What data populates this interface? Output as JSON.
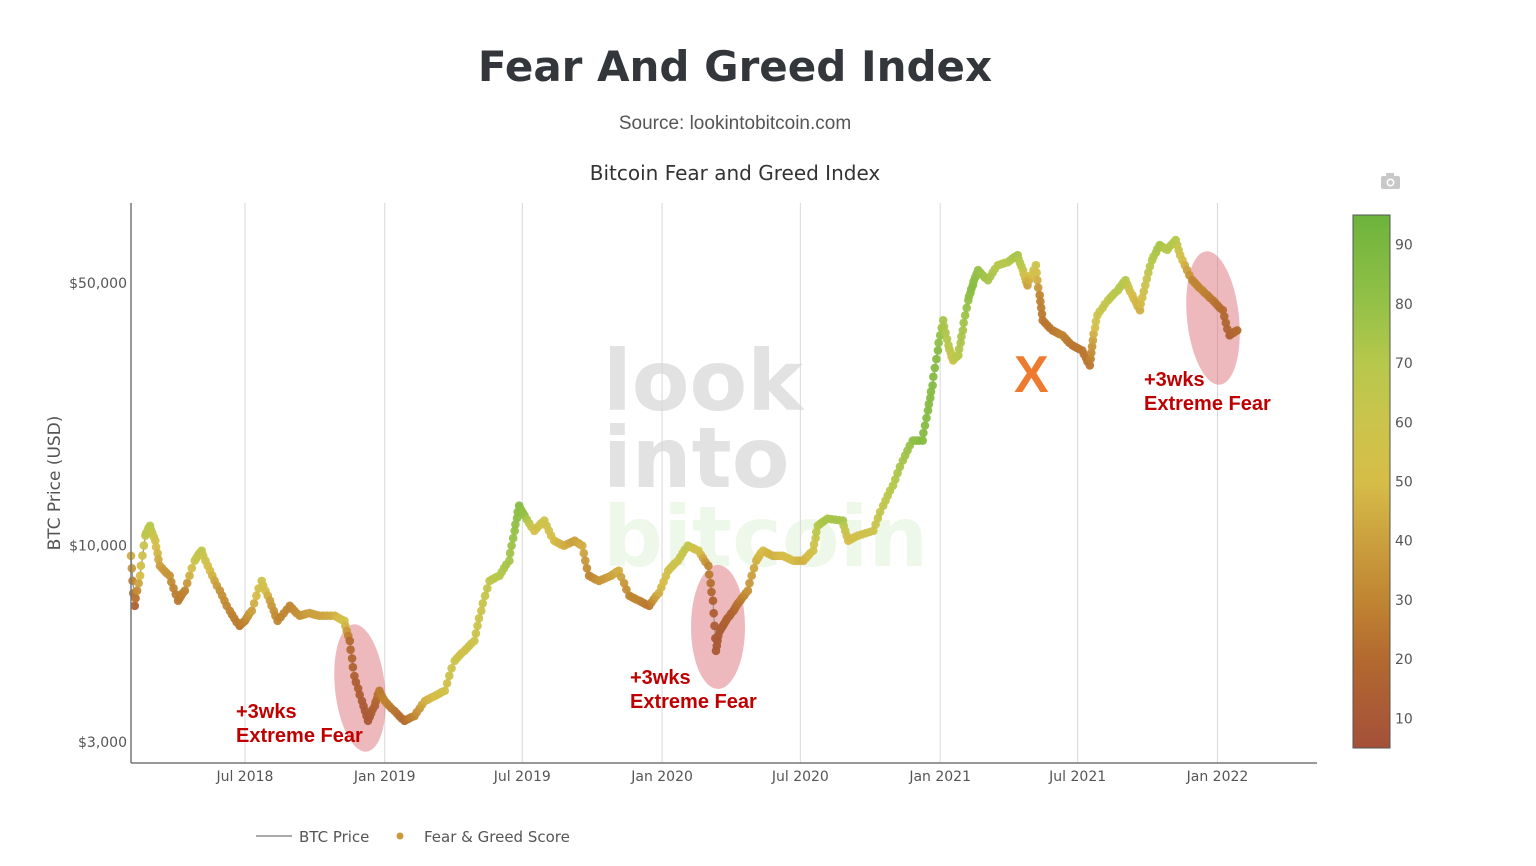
{
  "header": {
    "title": "Fear And Greed Index",
    "subtitle": "Source: lookintobitcoin.com"
  },
  "toolbar": {
    "camera_icon": "camera-icon"
  },
  "watermark": {
    "lines": [
      "look",
      "into",
      "bitcoin"
    ]
  },
  "chart_data": {
    "type": "scatter",
    "title": "Bitcoin Fear and Greed Index",
    "ylabel": "BTC Price (USD)",
    "xlabel": "",
    "yscale": "log",
    "ylim": [
      2640,
      81700
    ],
    "xlim": [
      "2018-02-01",
      "2022-05-12"
    ],
    "grid": "vertical",
    "x_ticks": [
      {
        "date": "2018-07-01",
        "label": "Jul 2018"
      },
      {
        "date": "2019-01-01",
        "label": "Jan 2019"
      },
      {
        "date": "2019-07-01",
        "label": "Jul 2019"
      },
      {
        "date": "2020-01-01",
        "label": "Jan 2020"
      },
      {
        "date": "2020-07-01",
        "label": "Jul 2020"
      },
      {
        "date": "2021-01-01",
        "label": "Jan 2021"
      },
      {
        "date": "2021-07-01",
        "label": "Jul 2021"
      },
      {
        "date": "2022-01-01",
        "label": "Jan 2022"
      }
    ],
    "y_ticks": [
      {
        "value": 50000,
        "label": "$50,000"
      },
      {
        "value": 10000,
        "label": "$10,000"
      },
      {
        "value": 3000,
        "label": "$3,000"
      }
    ],
    "colorbar": {
      "range": [
        5,
        95
      ],
      "ticks": [
        10,
        20,
        30,
        40,
        50,
        60,
        70,
        80,
        90
      ],
      "colorscale": [
        [
          5,
          "#a4503a"
        ],
        [
          20,
          "#b3692f"
        ],
        [
          30,
          "#c08532"
        ],
        [
          40,
          "#cba03e"
        ],
        [
          50,
          "#d6bd48"
        ],
        [
          60,
          "#cbc44c"
        ],
        [
          70,
          "#b6c84c"
        ],
        [
          80,
          "#94c147"
        ],
        [
          95,
          "#6db33c"
        ]
      ]
    },
    "legend": {
      "placement": "bottom-left",
      "items": [
        {
          "name": "BTC Price",
          "kind": "line",
          "color": "#aaaaaa"
        },
        {
          "name": "Fear & Greed Score",
          "kind": "marker",
          "color": "#c89a3a"
        }
      ]
    },
    "annotations": [
      {
        "text_lines": [
          "+3wks",
          "Extreme Fear"
        ],
        "period": "2018-11 to 2018-12"
      },
      {
        "text_lines": [
          "+3wks",
          "Extreme Fear"
        ],
        "period": "2020-03 to 2020-04"
      },
      {
        "text_lines": [
          "+3wks",
          "Extreme Fear"
        ],
        "period": "2021-11 to 2022-01"
      },
      {
        "text_lines": [
          "X"
        ],
        "color": "#ee7a30",
        "period": "2021-05"
      }
    ],
    "series": [
      {
        "name": "BTC Price / Fear & Greed Score",
        "points": [
          [
            "2018-02-01",
            9400,
            45
          ],
          [
            "2018-02-06",
            6920,
            15
          ],
          [
            "2018-02-13",
            8320,
            50
          ],
          [
            "2018-02-20",
            10640,
            65
          ],
          [
            "2018-02-26",
            11300,
            70
          ],
          [
            "2018-03-05",
            10310,
            55
          ],
          [
            "2018-03-11",
            8840,
            40
          ],
          [
            "2018-03-24",
            8320,
            35
          ],
          [
            "2018-04-04",
            7140,
            25
          ],
          [
            "2018-04-13",
            7590,
            30
          ],
          [
            "2018-04-26",
            9120,
            60
          ],
          [
            "2018-05-05",
            9700,
            65
          ],
          [
            "2018-05-16",
            8580,
            50
          ],
          [
            "2018-05-29",
            7590,
            35
          ],
          [
            "2018-06-11",
            6710,
            30
          ],
          [
            "2018-06-24",
            6120,
            25
          ],
          [
            "2018-07-01",
            6310,
            30
          ],
          [
            "2018-07-10",
            6710,
            40
          ],
          [
            "2018-07-23",
            8060,
            60
          ],
          [
            "2018-08-03",
            7140,
            40
          ],
          [
            "2018-08-13",
            6310,
            30
          ],
          [
            "2018-08-29",
            6920,
            30
          ],
          [
            "2018-09-11",
            6510,
            35
          ],
          [
            "2018-09-24",
            6620,
            40
          ],
          [
            "2018-10-07",
            6510,
            40
          ],
          [
            "2018-10-27",
            6510,
            45
          ],
          [
            "2018-11-09",
            6310,
            55
          ],
          [
            "2018-11-16",
            5580,
            20
          ],
          [
            "2018-11-22",
            4500,
            15
          ],
          [
            "2018-12-02",
            3860,
            12
          ],
          [
            "2018-12-10",
            3420,
            10
          ],
          [
            "2018-12-19",
            3750,
            15
          ],
          [
            "2018-12-25",
            4110,
            25
          ],
          [
            "2019-01-01",
            3860,
            30
          ],
          [
            "2019-01-14",
            3630,
            25
          ],
          [
            "2019-01-27",
            3420,
            20
          ],
          [
            "2019-02-09",
            3520,
            30
          ],
          [
            "2019-02-23",
            3860,
            45
          ],
          [
            "2019-03-08",
            3980,
            50
          ],
          [
            "2019-03-21",
            4110,
            55
          ],
          [
            "2019-04-03",
            4940,
            60
          ],
          [
            "2019-04-16",
            5250,
            55
          ],
          [
            "2019-04-29",
            5580,
            60
          ],
          [
            "2019-05-08",
            6710,
            60
          ],
          [
            "2019-05-19",
            8060,
            65
          ],
          [
            "2019-06-01",
            8320,
            70
          ],
          [
            "2019-06-14",
            9120,
            75
          ],
          [
            "2019-06-21",
            10960,
            80
          ],
          [
            "2019-06-27",
            12780,
            85
          ],
          [
            "2019-07-04",
            12020,
            80
          ],
          [
            "2019-07-17",
            10960,
            55
          ],
          [
            "2019-07-30",
            11660,
            60
          ],
          [
            "2019-08-12",
            10310,
            50
          ],
          [
            "2019-08-25",
            10000,
            45
          ],
          [
            "2019-09-08",
            10310,
            40
          ],
          [
            "2019-09-18",
            10000,
            45
          ],
          [
            "2019-09-27",
            8320,
            30
          ],
          [
            "2019-10-10",
            8060,
            35
          ],
          [
            "2019-10-26",
            8320,
            40
          ],
          [
            "2019-11-05",
            8580,
            45
          ],
          [
            "2019-11-19",
            7360,
            30
          ],
          [
            "2019-12-02",
            7140,
            30
          ],
          [
            "2019-12-15",
            6920,
            25
          ],
          [
            "2019-12-28",
            7490,
            45
          ],
          [
            "2020-01-09",
            8580,
            55
          ],
          [
            "2020-01-22",
            9120,
            60
          ],
          [
            "2020-02-04",
            10000,
            65
          ],
          [
            "2020-02-18",
            9700,
            55
          ],
          [
            "2020-03-02",
            8840,
            30
          ],
          [
            "2020-03-08",
            7140,
            15
          ],
          [
            "2020-03-12",
            5250,
            10
          ],
          [
            "2020-03-17",
            5930,
            12
          ],
          [
            "2020-03-25",
            6310,
            15
          ],
          [
            "2020-04-04",
            6710,
            18
          ],
          [
            "2020-04-13",
            7140,
            25
          ],
          [
            "2020-04-23",
            7590,
            35
          ],
          [
            "2020-05-04",
            9120,
            45
          ],
          [
            "2020-05-13",
            9700,
            50
          ],
          [
            "2020-05-26",
            9400,
            45
          ],
          [
            "2020-06-08",
            9400,
            50
          ],
          [
            "2020-06-22",
            9120,
            50
          ],
          [
            "2020-07-05",
            9120,
            45
          ],
          [
            "2020-07-18",
            9700,
            55
          ],
          [
            "2020-07-24",
            11300,
            70
          ],
          [
            "2020-08-06",
            11800,
            75
          ],
          [
            "2020-08-26",
            11660,
            75
          ],
          [
            "2020-09-02",
            10310,
            50
          ],
          [
            "2020-09-15",
            10640,
            55
          ],
          [
            "2020-10-05",
            10960,
            60
          ],
          [
            "2020-10-18",
            12780,
            65
          ],
          [
            "2020-10-31",
            14450,
            70
          ],
          [
            "2020-11-13",
            16860,
            75
          ],
          [
            "2020-11-26",
            19050,
            80
          ],
          [
            "2020-12-09",
            19050,
            85
          ],
          [
            "2020-12-16",
            22900,
            85
          ],
          [
            "2020-12-22",
            26710,
            85
          ],
          [
            "2020-12-29",
            33110,
            85
          ],
          [
            "2021-01-05",
            39810,
            75
          ],
          [
            "2021-01-12",
            34150,
            70
          ],
          [
            "2021-01-18",
            31140,
            60
          ],
          [
            "2021-01-25",
            32120,
            70
          ],
          [
            "2021-01-31",
            37430,
            75
          ],
          [
            "2021-02-07",
            45010,
            80
          ],
          [
            "2021-02-13",
            49350,
            85
          ],
          [
            "2021-02-20",
            54120,
            80
          ],
          [
            "2021-03-05",
            50890,
            75
          ],
          [
            "2021-03-18",
            55800,
            70
          ],
          [
            "2021-03-31",
            56840,
            70
          ],
          [
            "2021-04-13",
            59340,
            75
          ],
          [
            "2021-04-20",
            54120,
            65
          ],
          [
            "2021-04-26",
            49350,
            40
          ],
          [
            "2021-05-07",
            55800,
            60
          ],
          [
            "2021-05-12",
            46420,
            30
          ],
          [
            "2021-05-16",
            39810,
            25
          ],
          [
            "2021-05-29",
            37430,
            25
          ],
          [
            "2021-06-11",
            36310,
            30
          ],
          [
            "2021-06-24",
            34150,
            25
          ],
          [
            "2021-07-07",
            33110,
            25
          ],
          [
            "2021-07-17",
            30200,
            25
          ],
          [
            "2021-07-21",
            35220,
            40
          ],
          [
            "2021-07-27",
            41060,
            60
          ],
          [
            "2021-08-10",
            45010,
            65
          ],
          [
            "2021-08-23",
            47860,
            70
          ],
          [
            "2021-09-02",
            50890,
            70
          ],
          [
            "2021-09-11",
            46420,
            50
          ],
          [
            "2021-09-21",
            42340,
            45
          ],
          [
            "2021-09-28",
            49350,
            60
          ],
          [
            "2021-10-07",
            57540,
            70
          ],
          [
            "2021-10-17",
            63100,
            75
          ],
          [
            "2021-10-27",
            61330,
            70
          ],
          [
            "2021-11-07",
            65080,
            70
          ],
          [
            "2021-11-16",
            57540,
            50
          ],
          [
            "2021-11-29",
            50890,
            30
          ],
          [
            "2021-12-12",
            47860,
            30
          ],
          [
            "2021-12-26",
            45010,
            25
          ],
          [
            "2022-01-08",
            42340,
            20
          ],
          [
            "2022-01-17",
            36310,
            15
          ],
          [
            "2022-01-27",
            37430,
            20
          ]
        ]
      }
    ]
  }
}
